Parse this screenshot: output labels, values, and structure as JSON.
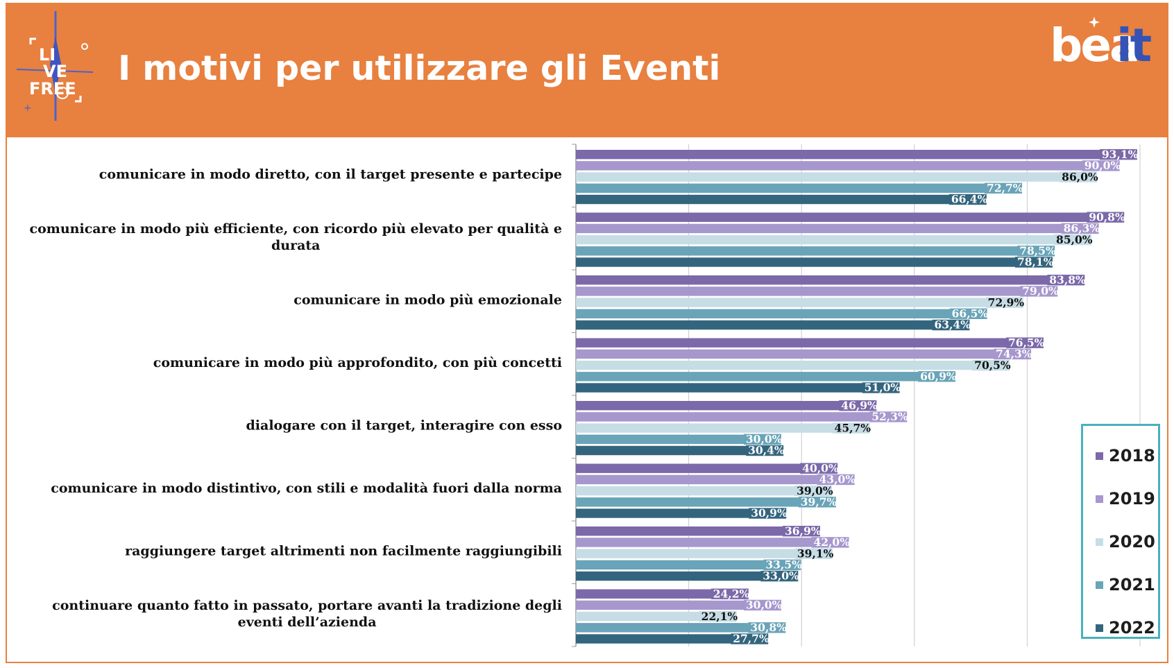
{
  "header": {
    "title": "I motivi per utilizzare gli Eventi",
    "left_logo_text": "LIVE FREE",
    "brand_logo_text": "beait",
    "brand_logo_parts": [
      "bea",
      "it"
    ]
  },
  "colors": {
    "header_bg": "#e8803f",
    "legend_border": "#48b1bf",
    "brand_blue": "#3553b4"
  },
  "chart_data": {
    "type": "bar",
    "orientation": "horizontal",
    "xlim": [
      0,
      100
    ],
    "grid": true,
    "legend_position": "bottom-right",
    "categories": [
      [
        "comunicare in modo diretto, con il target presente e partecipe"
      ],
      [
        "comunicare in modo più efficiente, con ricordo più elevato per qualità e",
        "durata"
      ],
      [
        "comunicare in modo più emozionale"
      ],
      [
        "comunicare in modo più approfondito, con più concetti"
      ],
      [
        "dialogare con il target, interagire con esso"
      ],
      [
        "comunicare in modo distintivo, con stili e modalità fuori dalla norma"
      ],
      [
        "raggiungere target altrimenti non facilmente raggiungibili"
      ],
      [
        "continuare quanto fatto in passato, portare avanti la tradizione degli",
        "eventi dell’azienda"
      ]
    ],
    "series": [
      {
        "name": "2018",
        "color": "#7b69a9",
        "label_color": "#ffffff",
        "values": [
          93.1,
          90.8,
          83.8,
          76.5,
          46.9,
          40.0,
          36.9,
          24.2
        ],
        "labels": [
          "93,1%",
          "90,8%",
          "83,8%",
          "76,5%",
          "46,9%",
          "40,0%",
          "36,9%",
          "24,2%"
        ]
      },
      {
        "name": "2019",
        "color": "#a697cd",
        "label_color": "#ffffff",
        "values": [
          90.0,
          86.3,
          79.0,
          74.3,
          52.3,
          43.0,
          42.0,
          30.0
        ],
        "labels": [
          "90,0%",
          "86,3%",
          "79,0%",
          "74,3%",
          "52,3%",
          "43,0%",
          "42,0%",
          "30,0%"
        ]
      },
      {
        "name": "2020",
        "color": "#c6dde6",
        "label_color": "#111111",
        "values": [
          86.0,
          85.0,
          72.9,
          70.5,
          45.7,
          39.0,
          39.1,
          22.1
        ],
        "labels": [
          "86,0%",
          "85,0%",
          "72,9%",
          "70,5%",
          "45,7%",
          "39,0%",
          "39,1%",
          "22,1%"
        ]
      },
      {
        "name": "2021",
        "color": "#6aa4b8",
        "label_color": "#ffffff",
        "values": [
          72.7,
          78.5,
          66.5,
          60.9,
          30.0,
          39.7,
          33.5,
          30.8
        ],
        "labels": [
          "72,7%",
          "78,5%",
          "66,5%",
          "60,9%",
          "30,0%",
          "39,7%",
          "33,5%",
          "30,8%"
        ]
      },
      {
        "name": "2022",
        "color": "#34657e",
        "label_color": "#ffffff",
        "values": [
          66.4,
          78.1,
          63.4,
          51.0,
          30.4,
          30.9,
          33.0,
          27.7
        ],
        "labels": [
          "66,4%",
          "78,1%",
          "63,4%",
          "51,0%",
          "30,4%",
          "30,9%",
          "33,0%",
          "27,7%"
        ]
      }
    ]
  }
}
